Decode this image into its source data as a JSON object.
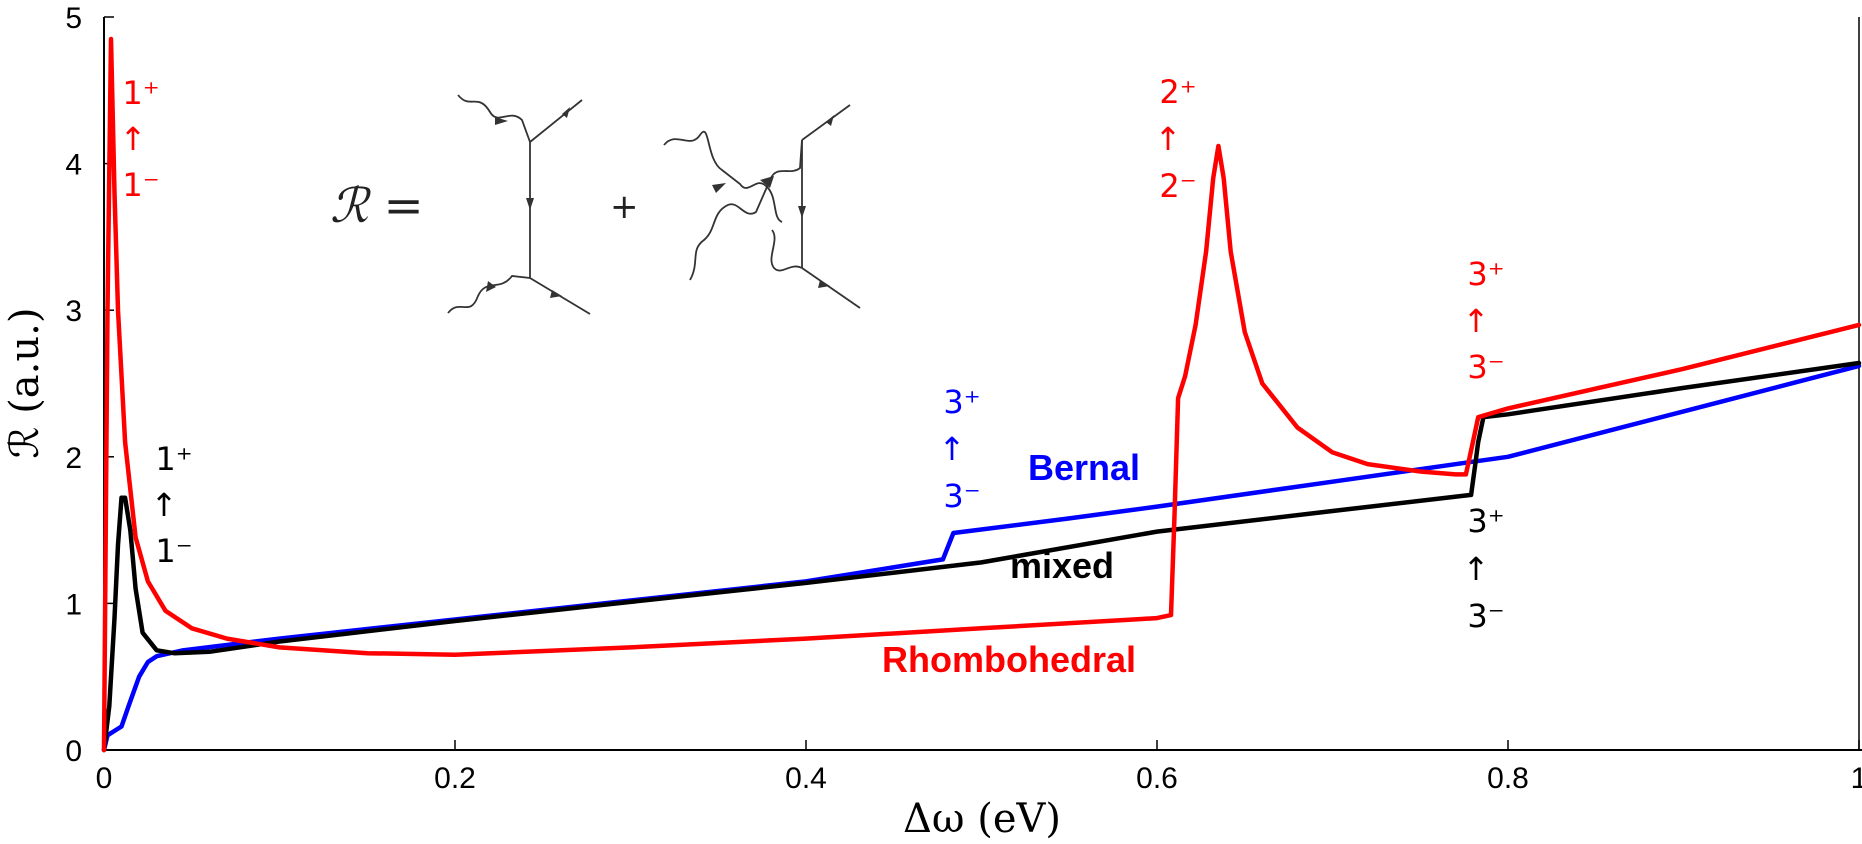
{
  "chart_data": {
    "type": "line",
    "xlabel": "Δω (eV)",
    "ylabel": "ℛ (a.u.)",
    "xlim": [
      0,
      1
    ],
    "ylim": [
      0,
      5
    ],
    "x_ticks": [
      "0",
      "0.2",
      "0.4",
      "0.6",
      "0.8",
      "1"
    ],
    "y_ticks": [
      "0",
      "1",
      "2",
      "3",
      "4",
      "5"
    ],
    "grid": false,
    "legend": "none (inline series labels)",
    "series": [
      {
        "name": "Bernal",
        "color": "#0000ff",
        "points": [
          [
            0,
            0
          ],
          [
            0.002,
            0.1
          ],
          [
            0.006,
            0.13
          ],
          [
            0.01,
            0.16
          ],
          [
            0.014,
            0.3
          ],
          [
            0.02,
            0.5
          ],
          [
            0.025,
            0.6
          ],
          [
            0.03,
            0.64
          ],
          [
            0.045,
            0.68
          ],
          [
            0.1,
            0.76
          ],
          [
            0.2,
            0.89
          ],
          [
            0.3,
            1.02
          ],
          [
            0.4,
            1.15
          ],
          [
            0.478,
            1.3
          ],
          [
            0.484,
            1.48
          ],
          [
            0.55,
            1.58
          ],
          [
            0.6,
            1.66
          ],
          [
            0.7,
            1.83
          ],
          [
            0.776,
            1.96
          ],
          [
            0.8,
            2.0
          ],
          [
            0.9,
            2.31
          ],
          [
            1.0,
            2.62
          ]
        ]
      },
      {
        "name": "mixed",
        "color": "#000000",
        "points": [
          [
            0,
            0
          ],
          [
            0.003,
            0.3
          ],
          [
            0.006,
            0.9
          ],
          [
            0.008,
            1.4
          ],
          [
            0.01,
            1.72
          ],
          [
            0.012,
            1.72
          ],
          [
            0.015,
            1.5
          ],
          [
            0.018,
            1.1
          ],
          [
            0.022,
            0.8
          ],
          [
            0.03,
            0.68
          ],
          [
            0.04,
            0.66
          ],
          [
            0.06,
            0.67
          ],
          [
            0.1,
            0.74
          ],
          [
            0.2,
            0.88
          ],
          [
            0.3,
            1.01
          ],
          [
            0.4,
            1.14
          ],
          [
            0.5,
            1.28
          ],
          [
            0.6,
            1.49
          ],
          [
            0.7,
            1.63
          ],
          [
            0.779,
            1.74
          ],
          [
            0.781,
            1.92
          ],
          [
            0.783,
            2.1
          ],
          [
            0.786,
            2.27
          ],
          [
            0.8,
            2.29
          ],
          [
            0.9,
            2.47
          ],
          [
            1.0,
            2.64
          ]
        ]
      },
      {
        "name": "Rhombohedral",
        "color": "#ff0000",
        "points": [
          [
            0,
            0
          ],
          [
            0.002,
            3.0
          ],
          [
            0.004,
            4.85
          ],
          [
            0.006,
            3.8
          ],
          [
            0.008,
            3.0
          ],
          [
            0.012,
            2.1
          ],
          [
            0.018,
            1.45
          ],
          [
            0.025,
            1.15
          ],
          [
            0.035,
            0.95
          ],
          [
            0.05,
            0.83
          ],
          [
            0.07,
            0.76
          ],
          [
            0.1,
            0.7
          ],
          [
            0.15,
            0.66
          ],
          [
            0.2,
            0.65
          ],
          [
            0.3,
            0.7
          ],
          [
            0.4,
            0.76
          ],
          [
            0.5,
            0.83
          ],
          [
            0.6,
            0.9
          ],
          [
            0.608,
            0.92
          ],
          [
            0.61,
            1.6
          ],
          [
            0.612,
            2.4
          ],
          [
            0.616,
            2.55
          ],
          [
            0.622,
            2.9
          ],
          [
            0.628,
            3.4
          ],
          [
            0.632,
            3.9
          ],
          [
            0.635,
            4.12
          ],
          [
            0.638,
            3.9
          ],
          [
            0.642,
            3.4
          ],
          [
            0.65,
            2.85
          ],
          [
            0.66,
            2.5
          ],
          [
            0.68,
            2.2
          ],
          [
            0.7,
            2.03
          ],
          [
            0.72,
            1.95
          ],
          [
            0.75,
            1.9
          ],
          [
            0.77,
            1.88
          ],
          [
            0.776,
            1.88
          ],
          [
            0.78,
            2.1
          ],
          [
            0.783,
            2.27
          ],
          [
            0.8,
            2.33
          ],
          [
            0.9,
            2.6
          ],
          [
            1.0,
            2.9
          ]
        ]
      }
    ],
    "annotations": {
      "rhombo_1": [
        "1⁺",
        "↑",
        "1⁻"
      ],
      "mixed_1": [
        "1⁺",
        "↑",
        "1⁻"
      ],
      "bernal_3": [
        "3⁺",
        "↑",
        "3⁻"
      ],
      "rhombo_2": [
        "2⁺",
        "↑",
        "2⁻"
      ],
      "rhombo_3": [
        "3⁺",
        "↑",
        "3⁻"
      ],
      "mixed_3": [
        "3⁺",
        "↑",
        "3⁻"
      ]
    },
    "inset": {
      "symbol": "ℛ =",
      "plus": "+"
    }
  }
}
